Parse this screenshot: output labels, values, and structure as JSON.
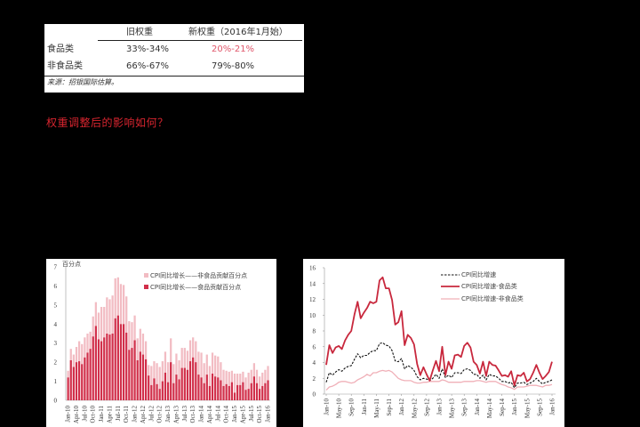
{
  "table": {
    "headers": [
      "",
      "旧权重",
      "新权重（2016年1月始）"
    ],
    "rows": [
      {
        "label": "食品类",
        "old": "33%-34%",
        "new": "20%-21%",
        "new_highlight": true
      },
      {
        "label": "非食品类",
        "old": "66%-67%",
        "new": "79%-80%",
        "new_highlight": false
      }
    ],
    "source": "来源：招银国际估算。"
  },
  "heading": "权重调整后的影响如何？",
  "colors": {
    "heading": "#d9252f",
    "highlight": "#e0566a",
    "food_bar": "#d12f4a",
    "nonfood_bar": "#f2bcc3",
    "food_line": "#c8283d",
    "nonfood_line": "#f0b0b8",
    "cpi_line": "#111111"
  },
  "chart_data": [
    {
      "type": "bar",
      "stacked": true,
      "title": "",
      "ylabel": "百分点",
      "xlabel": "",
      "ylim": [
        0,
        7
      ],
      "yticks": [
        0,
        1,
        2,
        3,
        4,
        5,
        6,
        7
      ],
      "xtick_labels": [
        "Jan-10",
        "Apr-10",
        "Jul-10",
        "Oct-10",
        "Jan-11",
        "Apr-11",
        "Jul-11",
        "Oct-11",
        "Jan-12",
        "Apr-12",
        "Jul-12",
        "Oct-12",
        "Jan-13",
        "Apr-13",
        "Jul-13",
        "Oct-13",
        "Jan-14",
        "Apr-14",
        "Jul-14",
        "Oct-14",
        "Jan-15",
        "Apr-15",
        "Jul-15",
        "Oct-15",
        "Jan-16"
      ],
      "legend": [
        "CPI同比增长——非食品贡献百分点",
        "CPI同比增长——食品贡献百分点"
      ],
      "legend_position": "top-right",
      "series": [
        {
          "name": "CPI同比增长——食品贡献百分点",
          "values": [
            1.2,
            2.1,
            1.75,
            2.0,
            2.05,
            1.9,
            2.25,
            2.5,
            2.7,
            3.35,
            3.9,
            3.2,
            3.1,
            3.3,
            3.5,
            3.45,
            3.5,
            4.3,
            4.45,
            4.0,
            4.0,
            3.55,
            2.65,
            2.75,
            3.15,
            2.1,
            2.55,
            2.4,
            2.15,
            1.3,
            0.8,
            1.15,
            0.85,
            0.6,
            1.0,
            1.45,
            0.95,
            2.0,
            0.9,
            1.35,
            1.1,
            1.7,
            1.7,
            1.6,
            2.05,
            2.25,
            2.0,
            1.35,
            1.2,
            0.9,
            1.35,
            0.75,
            1.4,
            1.25,
            1.2,
            1.05,
            0.75,
            0.85,
            0.75,
            0.95,
            0.4,
            0.8,
            0.8,
            0.95,
            0.55,
            0.6,
            0.9,
            1.25,
            0.9,
            0.6,
            0.75,
            0.9,
            1.05
          ]
        },
        {
          "name": "CPI同比增长——非食品贡献百分点",
          "values": [
            0.35,
            0.6,
            0.65,
            0.8,
            1.05,
            1.05,
            1.05,
            1.0,
            0.9,
            1.05,
            1.25,
            1.4,
            1.8,
            1.6,
            1.9,
            1.85,
            2.0,
            2.1,
            2.0,
            2.1,
            2.05,
            1.9,
            1.5,
            1.35,
            1.3,
            1.15,
            1.2,
            1.1,
            0.95,
            0.55,
            1.0,
            0.9,
            1.1,
            1.15,
            1.05,
            1.1,
            1.05,
            1.25,
            1.0,
            1.1,
            1.0,
            1.05,
            1.05,
            1.0,
            1.1,
            1.05,
            1.1,
            1.2,
            1.3,
            1.05,
            1.05,
            1.05,
            1.1,
            1.1,
            1.1,
            0.95,
            0.85,
            0.7,
            0.75,
            0.6,
            1.0,
            0.6,
            0.6,
            0.55,
            0.65,
            0.85,
            0.7,
            0.7,
            0.7,
            0.65,
            0.7,
            0.7,
            0.75
          ]
        }
      ]
    },
    {
      "type": "line",
      "title": "",
      "xlabel": "",
      "ylabel": "",
      "ylim": [
        0,
        16
      ],
      "yticks": [
        0,
        2,
        4,
        6,
        8,
        10,
        12,
        14,
        16
      ],
      "xtick_labels": [
        "Jan-10",
        "May-10",
        "Sep-10",
        "Jan-11",
        "May-11",
        "Sep-11",
        "Jan-12",
        "May-12",
        "Sep-12",
        "Jan-13",
        "May-13",
        "Sep-13",
        "Jan-14",
        "May-14",
        "Sep-14",
        "Jan-15",
        "May-15",
        "Sep-15",
        "Jan-16"
      ],
      "legend": [
        "CPI同比增速",
        "CPI同比增速-食品类",
        "CPI同比增速-非食品类"
      ],
      "legend_position": "top-right",
      "series": [
        {
          "name": "CPI同比增速",
          "style": "dashed",
          "values": [
            1.5,
            2.7,
            2.4,
            2.8,
            3.1,
            2.9,
            3.3,
            3.5,
            3.6,
            4.4,
            5.1,
            4.6,
            4.9,
            4.9,
            5.3,
            5.5,
            5.5,
            6.4,
            6.5,
            6.2,
            6.1,
            5.5,
            4.2,
            4.1,
            4.5,
            3.2,
            3.6,
            3.4,
            3.0,
            2.2,
            1.8,
            2.0,
            1.9,
            1.7,
            2.0,
            2.5,
            2.0,
            3.2,
            2.1,
            2.4,
            2.1,
            2.7,
            2.7,
            2.6,
            3.1,
            3.2,
            3.0,
            2.5,
            2.5,
            2.0,
            2.4,
            1.8,
            2.5,
            2.3,
            2.3,
            2.0,
            1.6,
            1.6,
            1.4,
            1.5,
            0.8,
            1.4,
            1.4,
            1.5,
            1.2,
            1.4,
            1.6,
            2.0,
            1.6,
            1.3,
            1.5,
            1.6,
            1.8
          ]
        },
        {
          "name": "CPI同比增速-食品类",
          "style": "solid-thick",
          "values": [
            3.7,
            6.2,
            5.2,
            5.9,
            6.1,
            5.7,
            6.8,
            7.5,
            8.0,
            10.1,
            11.7,
            9.6,
            10.3,
            10.9,
            11.7,
            11.5,
            11.7,
            14.4,
            14.8,
            13.4,
            13.4,
            11.9,
            8.8,
            9.1,
            10.5,
            6.2,
            7.5,
            7.1,
            6.3,
            3.8,
            2.4,
            3.4,
            2.5,
            1.7,
            3.0,
            4.2,
            2.9,
            6.0,
            2.4,
            4.1,
            3.2,
            4.9,
            5.0,
            4.7,
            6.1,
            6.5,
            5.9,
            4.1,
            3.7,
            2.6,
            4.1,
            2.3,
            4.1,
            3.7,
            3.6,
            3.0,
            2.3,
            2.4,
            2.2,
            2.9,
            1.1,
            2.4,
            2.3,
            2.7,
            1.6,
            1.9,
            2.7,
            3.7,
            2.7,
            1.9,
            2.3,
            2.8,
            4.1
          ]
        },
        {
          "name": "CPI同比增速-非食品类",
          "style": "solid-thin",
          "values": [
            0.5,
            0.9,
            1.0,
            1.2,
            1.5,
            1.6,
            1.6,
            1.5,
            1.4,
            1.5,
            1.8,
            2.0,
            2.2,
            2.5,
            2.3,
            2.7,
            2.7,
            2.9,
            3.0,
            2.9,
            3.0,
            2.8,
            2.4,
            2.0,
            1.8,
            1.7,
            1.7,
            1.7,
            1.5,
            1.4,
            1.4,
            1.5,
            1.5,
            1.6,
            1.6,
            1.6,
            1.6,
            1.8,
            1.7,
            1.5,
            1.5,
            1.5,
            1.5,
            1.5,
            1.6,
            1.6,
            1.6,
            1.6,
            1.7,
            1.7,
            1.6,
            1.5,
            1.6,
            1.6,
            1.6,
            1.4,
            1.2,
            1.1,
            0.9,
            0.8,
            0.6,
            0.9,
            0.9,
            0.9,
            1.0,
            1.1,
            1.1,
            1.1,
            1.0,
            0.9,
            1.1,
            1.1,
            1.2
          ]
        }
      ]
    }
  ]
}
